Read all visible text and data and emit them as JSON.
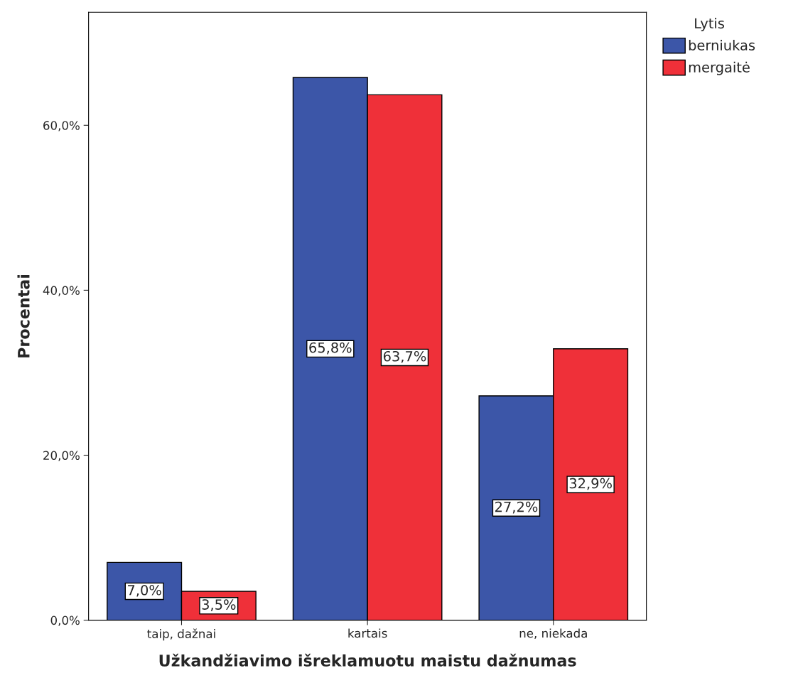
{
  "chart_data": {
    "type": "bar",
    "xlabel": "Užkandžiavimo išreklamuotu maistu dažnumas",
    "ylabel": "Procentai",
    "legend_title": "Lytis",
    "categories": [
      "taip, dažnai",
      "kartais",
      "ne, niekada"
    ],
    "series": [
      {
        "name": "berniukas",
        "color": "#3c56a8",
        "values": [
          7.0,
          65.8,
          27.2
        ],
        "value_labels": [
          "7,0%",
          "65,8%",
          "27,2%"
        ]
      },
      {
        "name": "mergaitė",
        "color": "#ef3039",
        "values": [
          3.5,
          63.7,
          32.9
        ],
        "value_labels": [
          "3,5%",
          "63,7%",
          "32,9%"
        ]
      }
    ],
    "ylim": [
      0,
      73.7
    ],
    "yticks": [
      {
        "value": 0,
        "label": "0,0%"
      },
      {
        "value": 20,
        "label": "20,0%"
      },
      {
        "value": 40,
        "label": "40,0%"
      },
      {
        "value": 60,
        "label": "60,0%"
      }
    ],
    "grid": false,
    "legend": "top right"
  }
}
